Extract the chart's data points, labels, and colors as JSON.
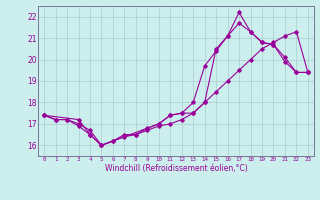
{
  "xlabel": "Windchill (Refroidissement éolien,°C)",
  "background_color": "#cceeed",
  "grid_color": "#aacccc",
  "line_color": "#990099",
  "xlim": [
    -0.5,
    23.5
  ],
  "ylim": [
    15.5,
    22.5
  ],
  "yticks": [
    16,
    17,
    18,
    19,
    20,
    21,
    22
  ],
  "xticks": [
    0,
    1,
    2,
    3,
    4,
    5,
    6,
    7,
    8,
    9,
    10,
    11,
    12,
    13,
    14,
    15,
    16,
    17,
    18,
    19,
    20,
    21,
    22,
    23
  ],
  "line1_x": [
    0,
    1,
    2,
    3,
    4,
    5,
    6,
    7,
    8,
    9,
    10,
    11,
    12,
    13,
    14,
    15,
    16,
    17,
    18,
    19,
    20,
    21,
    22,
    23
  ],
  "line1_y": [
    17.4,
    17.2,
    17.2,
    16.9,
    16.5,
    16.0,
    16.2,
    16.4,
    16.5,
    16.7,
    16.9,
    17.0,
    17.2,
    17.5,
    18.0,
    18.5,
    19.0,
    19.5,
    20.0,
    20.5,
    20.8,
    21.1,
    21.3,
    19.4
  ],
  "line2_x": [
    0,
    1,
    2,
    3,
    4,
    5,
    6,
    7,
    8,
    9,
    10,
    11,
    12,
    13,
    14,
    15,
    16,
    17,
    18,
    19,
    20,
    21,
    22,
    23
  ],
  "line2_y": [
    17.4,
    17.2,
    17.2,
    17.0,
    16.7,
    16.0,
    16.2,
    16.5,
    16.5,
    16.8,
    17.0,
    17.4,
    17.5,
    18.0,
    19.7,
    20.4,
    21.1,
    22.2,
    21.3,
    20.8,
    20.7,
    19.9,
    19.4,
    19.4
  ],
  "line3_x": [
    0,
    3,
    4,
    5,
    10,
    11,
    12,
    13,
    14,
    15,
    16,
    17,
    18,
    19,
    20,
    21,
    22,
    23
  ],
  "line3_y": [
    17.4,
    17.2,
    16.5,
    16.0,
    17.0,
    17.4,
    17.5,
    17.5,
    18.0,
    20.5,
    21.1,
    21.7,
    21.3,
    20.8,
    20.7,
    20.1,
    19.4,
    19.4
  ]
}
